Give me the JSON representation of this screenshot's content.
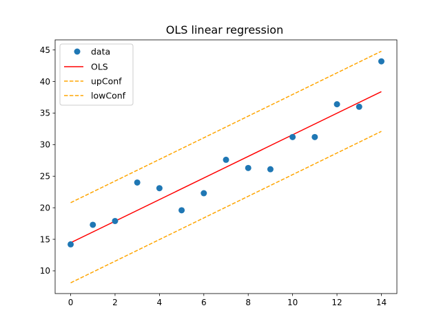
{
  "chart_data": {
    "type": "line",
    "title": "OLS linear regression",
    "xlabel": "",
    "ylabel": "",
    "xlim": [
      -0.7,
      14.7
    ],
    "ylim": [
      6.4,
      46.6
    ],
    "xticks": [
      0,
      2,
      4,
      6,
      8,
      10,
      12,
      14
    ],
    "yticks": [
      10,
      15,
      20,
      25,
      30,
      35,
      40,
      45
    ],
    "legend_position": "top-left",
    "colors": {
      "data": "#1f77b4",
      "ols": "#ff0000",
      "conf": "#ffa500"
    },
    "series": [
      {
        "name": "data",
        "kind": "scatter",
        "x": [
          0,
          1,
          2,
          3,
          4,
          5,
          6,
          7,
          8,
          9,
          10,
          11,
          12,
          13,
          14
        ],
        "y": [
          14.2,
          17.3,
          17.9,
          24.0,
          23.1,
          19.6,
          22.3,
          27.6,
          26.3,
          26.1,
          31.2,
          31.2,
          36.4,
          36.0,
          43.2
        ]
      },
      {
        "name": "OLS",
        "kind": "line",
        "style": "solid",
        "x": [
          0,
          14
        ],
        "y": [
          14.45,
          38.4
        ]
      },
      {
        "name": "upConf",
        "kind": "line",
        "style": "dashed",
        "x": [
          0,
          14
        ],
        "y": [
          20.8,
          44.8
        ]
      },
      {
        "name": "lowConf",
        "kind": "line",
        "style": "dashed",
        "x": [
          0,
          14
        ],
        "y": [
          8.1,
          32.1
        ]
      }
    ]
  }
}
